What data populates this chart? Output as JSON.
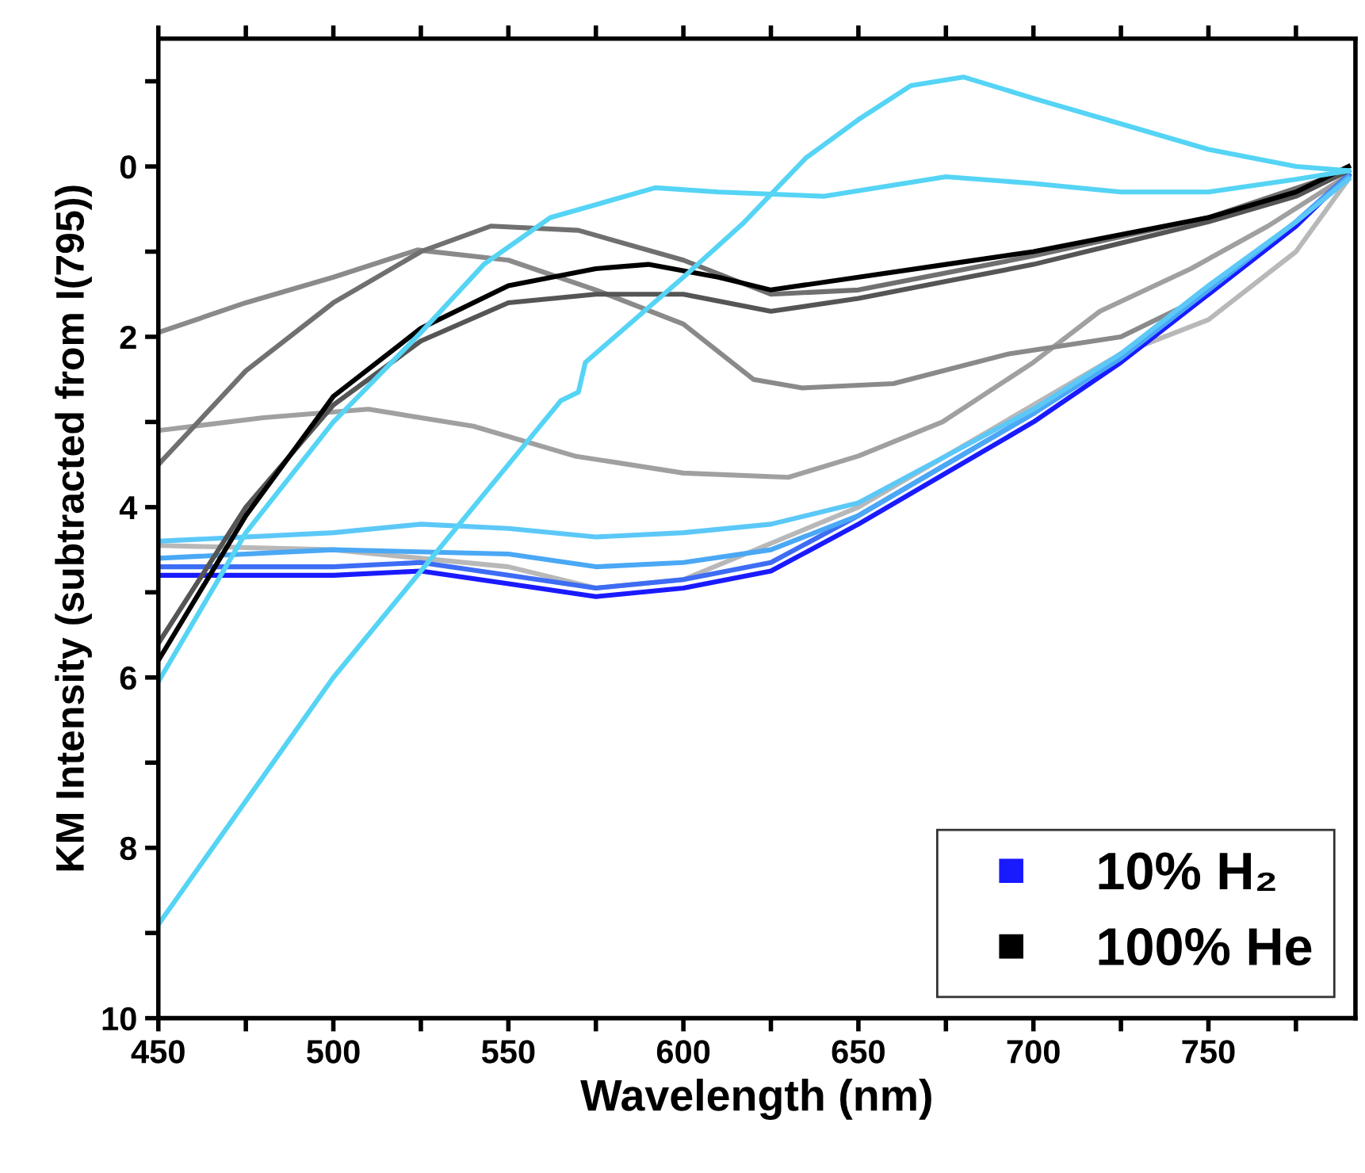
{
  "chart_data": {
    "type": "line",
    "xlabel": "Wavelength (nm)",
    "ylabel": "KM Intensity (subtracted from I(795))",
    "xlim": [
      450,
      792
    ],
    "ylim": [
      10,
      -1.5
    ],
    "xticks": [
      450,
      {
        "value": 475,
        "label": null
      },
      500,
      {
        "value": 525,
        "label": null
      },
      550,
      {
        "value": 575,
        "label": null
      },
      600,
      {
        "value": 625,
        "label": null
      },
      650,
      {
        "value": 675,
        "label": null
      },
      700,
      {
        "value": 725,
        "label": null
      },
      750,
      {
        "value": 775,
        "label": null
      }
    ],
    "yticks": [
      {
        "value": -1,
        "label": null
      },
      0,
      {
        "value": 1,
        "label": null
      },
      2,
      {
        "value": 3,
        "label": null
      },
      4,
      {
        "value": 5,
        "label": null
      },
      6,
      {
        "value": 7,
        "label": null
      },
      8,
      {
        "value": 9,
        "label": null
      },
      10
    ],
    "grid": false,
    "legend": "bottom right",
    "marker": "none",
    "line_style": "solid",
    "series": [
      {
        "color": "#a0a0a0",
        "x": [
          450,
          480,
          510,
          540,
          569,
          600,
          630,
          650,
          674,
          700,
          719,
          745,
          767,
          790
        ],
        "values": [
          3.1,
          2.95,
          2.85,
          3.05,
          3.4,
          3.6,
          3.65,
          3.4,
          3.0,
          2.3,
          1.7,
          1.2,
          0.7,
          0.1
        ]
      },
      {
        "color": "#8a8a8a",
        "x": [
          450,
          475,
          500,
          524,
          550,
          575,
          600,
          620,
          634,
          660,
          693,
          725,
          750,
          775,
          790
        ],
        "values": [
          1.95,
          1.6,
          1.3,
          0.98,
          1.1,
          1.45,
          1.85,
          2.5,
          2.6,
          2.55,
          2.2,
          2.0,
          1.5,
          0.7,
          0.1
        ]
      },
      {
        "color": "#707070",
        "x": [
          450,
          475,
          500,
          525,
          545,
          570,
          600,
          625,
          650,
          700,
          750,
          790
        ],
        "values": [
          3.5,
          2.4,
          1.6,
          1.0,
          0.7,
          0.75,
          1.1,
          1.5,
          1.45,
          1.05,
          0.6,
          0.05
        ]
      },
      {
        "color": "#b8b8b8",
        "x": [
          450,
          500,
          550,
          575,
          600,
          650,
          675,
          700,
          725,
          750,
          775,
          790
        ],
        "values": [
          4.45,
          4.5,
          4.7,
          4.95,
          4.85,
          4.0,
          3.4,
          2.8,
          2.2,
          1.8,
          1.0,
          0.15
        ]
      },
      {
        "color": "#1a1aff",
        "name": "10% H₂",
        "x": [
          450,
          500,
          525,
          550,
          575,
          600,
          625,
          650,
          675,
          700,
          725,
          750,
          775,
          790
        ],
        "values": [
          4.8,
          4.8,
          4.75,
          4.9,
          5.05,
          4.95,
          4.75,
          4.2,
          3.6,
          3.0,
          2.3,
          1.5,
          0.7,
          0.1
        ]
      },
      {
        "color": "#3d6cf5",
        "x": [
          450,
          500,
          525,
          550,
          575,
          600,
          625,
          650,
          675,
          700,
          725,
          750,
          775,
          790
        ],
        "values": [
          4.7,
          4.7,
          4.65,
          4.8,
          4.95,
          4.85,
          4.65,
          4.1,
          3.5,
          2.9,
          2.2,
          1.45,
          0.65,
          0.1
        ]
      },
      {
        "color": "#4aa8f5",
        "x": [
          450,
          500,
          550,
          575,
          600,
          625,
          650,
          675,
          700,
          725,
          750,
          775,
          790
        ],
        "values": [
          4.6,
          4.5,
          4.55,
          4.7,
          4.65,
          4.5,
          4.1,
          3.5,
          2.9,
          2.25,
          1.45,
          0.65,
          0.12
        ]
      },
      {
        "color": "#5cc8f8",
        "x": [
          450,
          500,
          525,
          550,
          575,
          600,
          625,
          650,
          675,
          700,
          725,
          750,
          775,
          790
        ],
        "values": [
          4.4,
          4.3,
          4.2,
          4.25,
          4.35,
          4.3,
          4.2,
          3.95,
          3.4,
          2.85,
          2.2,
          1.4,
          0.65,
          0.15
        ]
      },
      {
        "color": "#555555",
        "x": [
          450,
          475,
          500,
          525,
          550,
          575,
          600,
          625,
          650,
          675,
          700,
          725,
          750,
          775,
          790
        ],
        "values": [
          5.6,
          4.0,
          2.8,
          2.05,
          1.6,
          1.5,
          1.5,
          1.7,
          1.55,
          1.35,
          1.15,
          0.9,
          0.65,
          0.35,
          0.05
        ]
      },
      {
        "color": "#000000",
        "name": "100% He",
        "x": [
          450,
          475,
          500,
          525,
          550,
          575,
          590,
          610,
          625,
          650,
          675,
          700,
          725,
          750,
          775,
          790
        ],
        "values": [
          5.8,
          4.1,
          2.7,
          1.9,
          1.4,
          1.2,
          1.15,
          1.3,
          1.45,
          1.3,
          1.15,
          1.0,
          0.8,
          0.6,
          0.3,
          0.0
        ]
      },
      {
        "color": "#55d4f5",
        "x": [
          450,
          475,
          500,
          525,
          543,
          562,
          592,
          610,
          640,
          675,
          700,
          725,
          750,
          775,
          790
        ],
        "values": [
          6.05,
          4.3,
          3.0,
          1.95,
          1.15,
          0.6,
          0.25,
          0.3,
          0.35,
          0.12,
          0.2,
          0.3,
          0.3,
          0.15,
          0.05
        ]
      },
      {
        "color": "#55d4f5",
        "x": [
          450,
          475,
          500,
          525,
          550,
          565,
          570,
          572,
          600,
          617,
          635,
          650,
          665,
          680,
          700,
          725,
          750,
          775,
          790
        ],
        "values": [
          8.9,
          7.45,
          6.0,
          4.75,
          3.5,
          2.75,
          2.65,
          2.3,
          1.3,
          0.67,
          -0.1,
          -0.55,
          -0.95,
          -1.05,
          -0.8,
          -0.5,
          -0.2,
          0.0,
          0.05
        ]
      }
    ]
  }
}
